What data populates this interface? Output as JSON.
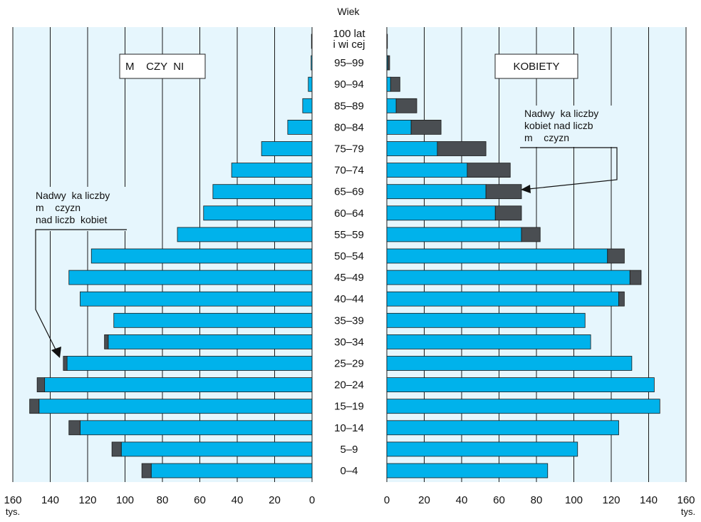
{
  "chart_data": {
    "type": "bar",
    "header": "Wiek",
    "unit": "tys.",
    "axis_ticks": [
      "0",
      "20",
      "40",
      "60",
      "80",
      "100",
      "120",
      "140",
      "160"
    ],
    "xlim": [
      0,
      160
    ],
    "age_groups": [
      "0–4",
      "5–9",
      "10–14",
      "15–19",
      "20–24",
      "25–29",
      "30–34",
      "35–39",
      "40–44",
      "45–49",
      "50–54",
      "55–59",
      "60–64",
      "65–69",
      "70–74",
      "75–79",
      "80–84",
      "85–89",
      "90–94",
      "95–99",
      "100 lat\ni wi cej"
    ],
    "men": [
      91,
      107,
      130,
      151,
      147,
      133,
      111,
      106,
      124,
      130,
      118,
      72,
      58,
      53,
      43,
      27,
      13,
      5,
      2,
      0.5,
      0.3
    ],
    "women": [
      86,
      102,
      124,
      146,
      143,
      131,
      109,
      106,
      127,
      136,
      127,
      82,
      72,
      72,
      66,
      53,
      29,
      16,
      7,
      1.5,
      0.3
    ],
    "men_legend": "M    CZY  NI",
    "women_legend": "KOBIETY",
    "annotation_men": [
      "Nadwy  ka liczby",
      "m    czyzn",
      "nad liczb  kobiet"
    ],
    "annotation_women": [
      "Nadwy  ka liczby",
      "kobiet nad liczb",
      "m    czyzn"
    ],
    "colors": {
      "panel_bg": "#e6f6fd",
      "bar": "#00b2eb",
      "surplus": "#4a4e52",
      "grid": "#1a1a1a"
    }
  }
}
